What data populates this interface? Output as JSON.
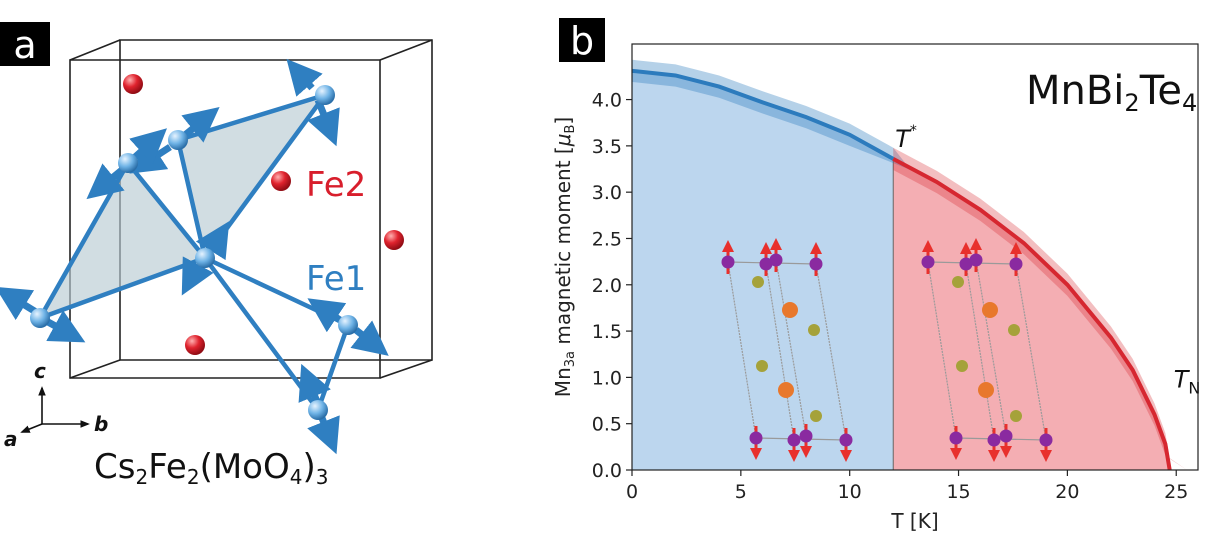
{
  "panel_a": {
    "label": "a",
    "fe2_label": "Fe2",
    "fe1_label": "Fe1",
    "axes": {
      "c": "c",
      "a": "a",
      "b": "b"
    },
    "formula": {
      "p1": "Cs",
      "s1": "2",
      "p2": "Fe",
      "s2": "2",
      "p3": "(MoO",
      "s3": "4",
      "p4": ")",
      "s4": "3"
    },
    "colors": {
      "fe1": "#2f7fc1",
      "fe2": "#d81e2c",
      "plane": "#b9cbd3",
      "box": "#222222"
    }
  },
  "panel_b": {
    "label": "b",
    "compound": {
      "p1": "MnBi",
      "s1": "2",
      "p2": "Te",
      "s2": "4"
    },
    "t_star_label": {
      "main": "T",
      "sup": "*"
    },
    "t_n_label": {
      "main": "T",
      "sub": "N"
    },
    "ylabel": {
      "p1": "Mn",
      "s1": "3a",
      "p2": " magnetic moment [",
      "mu": "μ",
      "s2": "B",
      "p3": "]"
    },
    "colors": {
      "blue_region": "#bcd6ee",
      "red_region": "#f4aeb3",
      "blue_line": "#2c7bbd",
      "red_line": "#d62730",
      "spin": "#e8302c",
      "mn_atom": "#8a2aa0",
      "te_atom": "#a5a23a",
      "bi_atom": "#e8782c"
    }
  },
  "chart_data": {
    "type": "line",
    "title": "",
    "xlabel": "T [K]",
    "ylabel": "Mn3a magnetic moment [μB]",
    "xlim": [
      0,
      26
    ],
    "ylim": [
      0,
      4.6
    ],
    "x_ticks": [
      "0",
      "5",
      "10",
      "15",
      "20",
      "25"
    ],
    "y_ticks": [
      "0.0",
      "0.5",
      "1.0",
      "1.5",
      "2.0",
      "2.5",
      "3.0",
      "3.5",
      "4.0"
    ],
    "grid": false,
    "T_star": 12,
    "T_N": 24.7,
    "series": [
      {
        "x": [
          0,
          2,
          4,
          6,
          8,
          10,
          12
        ],
        "y": [
          4.31,
          4.26,
          4.14,
          3.97,
          3.81,
          3.62,
          3.36
        ]
      },
      {
        "x": [
          12,
          14,
          16,
          18,
          20,
          22,
          23,
          24,
          24.5,
          24.7
        ],
        "y": [
          3.36,
          3.11,
          2.81,
          2.45,
          2.0,
          1.43,
          1.08,
          0.6,
          0.28,
          0.0
        ]
      }
    ],
    "band_halfwidth": 0.12
  }
}
